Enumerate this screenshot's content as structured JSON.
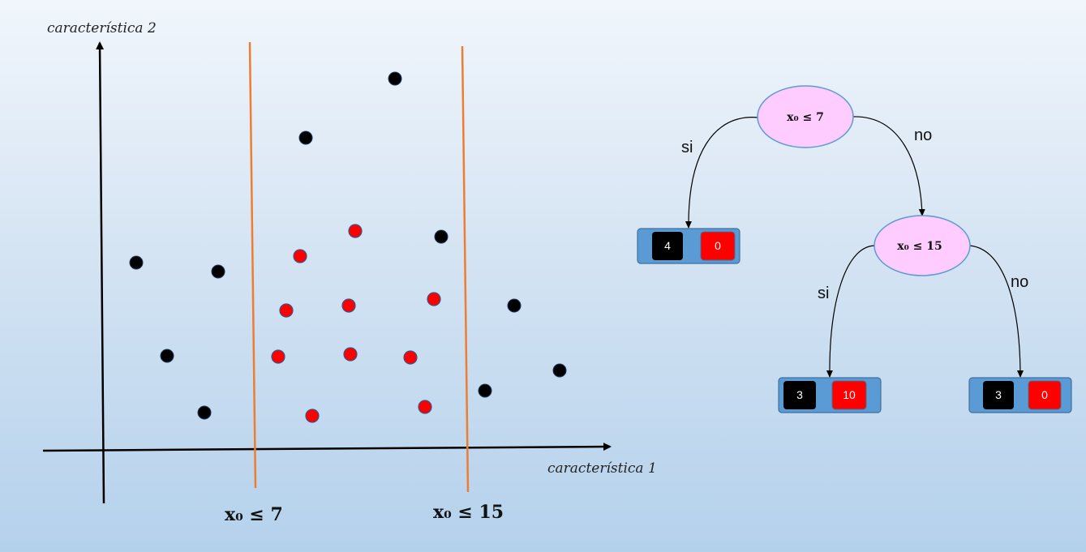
{
  "scatter": {
    "x_axis_label": "característica 1",
    "y_axis_label": "característica 2",
    "split_1_label": "x₀ ≤ 7",
    "split_2_label": "x₀ ≤ 15",
    "split_color": "#ed7d31",
    "black_color": "#000000",
    "red_color": "#ff0000"
  },
  "tree": {
    "root": {
      "condition": "x₀ ≤ 7"
    },
    "root_yes": "si",
    "root_no": "no",
    "left_leaf": {
      "black": "4",
      "red": "0"
    },
    "inner": {
      "condition": "x₀ ≤ 15"
    },
    "inner_yes": "si",
    "inner_no": "no",
    "mid_leaf": {
      "black": "3",
      "red": "10"
    },
    "right_leaf": {
      "black": "3",
      "red": "0"
    },
    "node_fill": "#ffccff",
    "leaf_fill": "#5b9bd5"
  }
}
